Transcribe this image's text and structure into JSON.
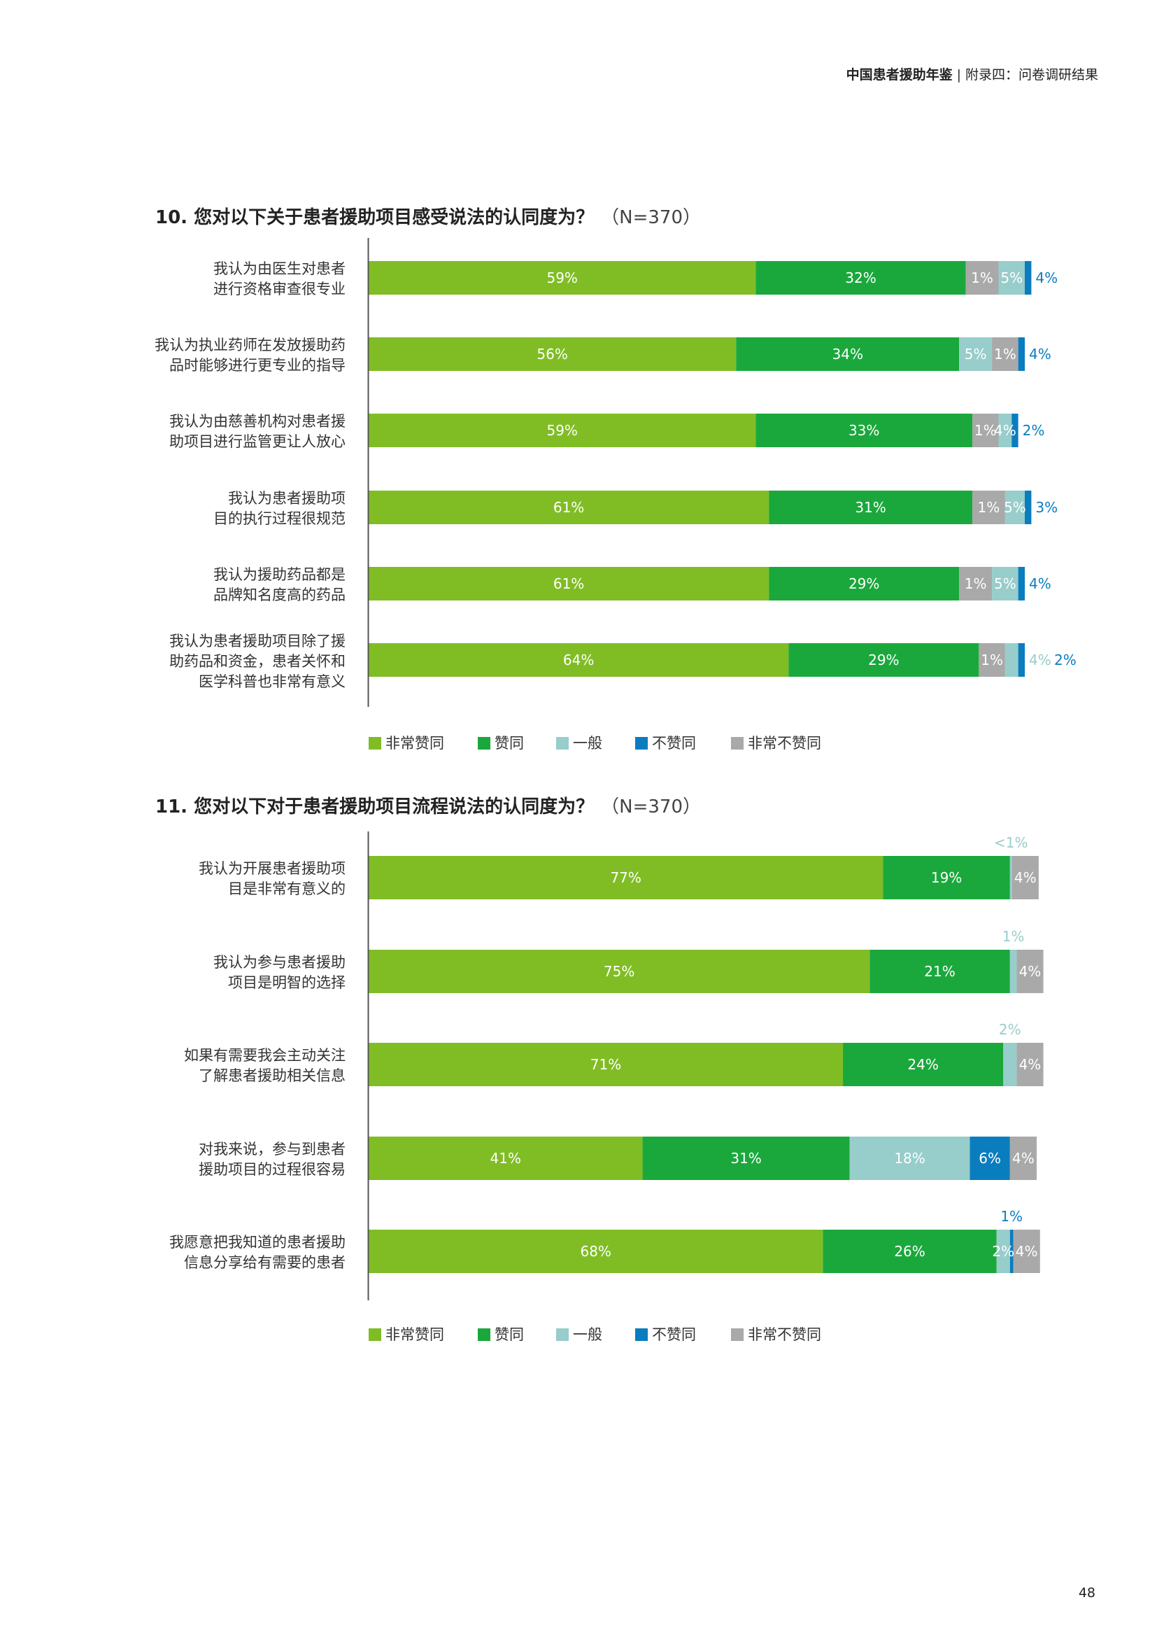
{
  "header": {
    "title": "中国患者援助年鉴",
    "separator": "|",
    "subtitle": "附录四：问卷调研结果"
  },
  "page_number": "48",
  "colors": {
    "very_agree": "#80bd25",
    "agree": "#1aa83c",
    "neutral": "#97cdcb",
    "disagree": "#0a7dbf",
    "very_disagree": "#a9a9a9"
  },
  "legend": [
    "非常赞同",
    "赞同",
    "一般",
    "不赞同",
    "非常不赞同"
  ],
  "chart_data": [
    {
      "type": "bar",
      "orientation": "horizontal",
      "stacked": true,
      "title": "10. 您对以下关于患者援助项目感受说法的认同度为？",
      "n_label": "（N=370）",
      "unit": "%",
      "categories": [
        [
          "我认为由医生对患者",
          "进行资格审查很专业"
        ],
        [
          "我认为执业药师在发放援助药",
          "品时能够进行更专业的指导"
        ],
        [
          "我认为由慈善机构对患者援",
          "助项目进行监管更让人放心"
        ],
        [
          "我认为患者援助项",
          "目的执行过程很规范"
        ],
        [
          "我认为援助药品都是",
          "品牌知名度高的药品"
        ],
        [
          "我认为患者援助项目除了援",
          "助药品和资金，患者关怀和",
          "医学科普也非常有意义"
        ]
      ],
      "series": [
        {
          "name": "非常赞同",
          "values": [
            59,
            56,
            59,
            61,
            61,
            64
          ]
        },
        {
          "name": "赞同",
          "values": [
            32,
            34,
            33,
            31,
            29,
            29
          ]
        },
        {
          "name": "一般",
          "values": [
            4,
            5,
            2,
            3,
            4,
            2
          ]
        },
        {
          "name": "不赞同",
          "values": [
            1,
            1,
            1,
            1,
            1,
            1
          ]
        },
        {
          "name": "非常不赞同",
          "values": [
            5,
            4,
            4,
            5,
            5,
            4
          ]
        }
      ],
      "order": [
        [
          "非常赞同",
          "赞同",
          "非常不赞同",
          "一般",
          "不赞同"
        ],
        [
          "非常赞同",
          "赞同",
          "一般",
          "非常不赞同",
          "不赞同"
        ],
        [
          "非常赞同",
          "赞同",
          "非常不赞同",
          "一般",
          "不赞同"
        ],
        [
          "非常赞同",
          "赞同",
          "非常不赞同",
          "一般",
          "不赞同"
        ],
        [
          "非常赞同",
          "赞同",
          "非常不赞同",
          "一般",
          "不赞同"
        ],
        [
          "非常赞同",
          "赞同",
          "非常不赞同",
          "一般",
          "不赞同"
        ]
      ],
      "labels": [
        [
          "59%",
          "32%",
          "5%",
          "4%",
          "1%"
        ],
        [
          "56%",
          "34%",
          "5%",
          "4%",
          "1%"
        ],
        [
          "59%",
          "33%",
          "4%",
          "2%",
          "1%"
        ],
        [
          "61%",
          "31%",
          "5%",
          "3%",
          "1%"
        ],
        [
          "61%",
          "29%",
          "5%",
          "4%",
          "1%"
        ],
        [
          "64%",
          "29%",
          "4%",
          "2%",
          "1%"
        ]
      ]
    },
    {
      "type": "bar",
      "orientation": "horizontal",
      "stacked": true,
      "title": "11. 您对以下对于患者援助项目流程说法的认同度为？",
      "n_label": "（N=370）",
      "unit": "%",
      "categories": [
        [
          "我认为开展患者援助项",
          "目是非常有意义的"
        ],
        [
          "我认为参与患者援助",
          "项目是明智的选择"
        ],
        [
          "如果有需要我会主动关注",
          "了解患者援助相关信息"
        ],
        [
          "对我来说，参与到患者",
          "援助项目的过程很容易"
        ],
        [
          "我愿意把我知道的患者援助",
          "信息分享给有需要的患者"
        ]
      ],
      "series": [
        {
          "name": "非常赞同",
          "values": [
            77,
            75,
            71,
            41,
            68
          ]
        },
        {
          "name": "赞同",
          "values": [
            19,
            21,
            24,
            31,
            26
          ]
        },
        {
          "name": "一般",
          "values": [
            0.3,
            1,
            2,
            18,
            2
          ]
        },
        {
          "name": "不赞同",
          "values": [
            0,
            0,
            0,
            6,
            0.5
          ]
        },
        {
          "name": "非常不赞同",
          "values": [
            4,
            4,
            4,
            4,
            4
          ]
        }
      ],
      "order": [
        [
          "非常赞同",
          "赞同",
          "一般",
          "不赞同",
          "非常不赞同"
        ],
        [
          "非常赞同",
          "赞同",
          "一般",
          "不赞同",
          "非常不赞同"
        ],
        [
          "非常赞同",
          "赞同",
          "一般",
          "不赞同",
          "非常不赞同"
        ],
        [
          "非常赞同",
          "赞同",
          "一般",
          "不赞同",
          "非常不赞同"
        ],
        [
          "非常赞同",
          "赞同",
          "一般",
          "不赞同",
          "非常不赞同"
        ]
      ],
      "labels": [
        [
          "77%",
          "19%",
          "<1%",
          "",
          "4%"
        ],
        [
          "75%",
          "21%",
          "1%",
          "",
          "4%"
        ],
        [
          "71%",
          "24%",
          "2%",
          "",
          "4%"
        ],
        [
          "41%",
          "31%",
          "18%",
          "6%",
          "4%"
        ],
        [
          "68%",
          "26%",
          "2%",
          "1%",
          "4%"
        ]
      ]
    }
  ]
}
